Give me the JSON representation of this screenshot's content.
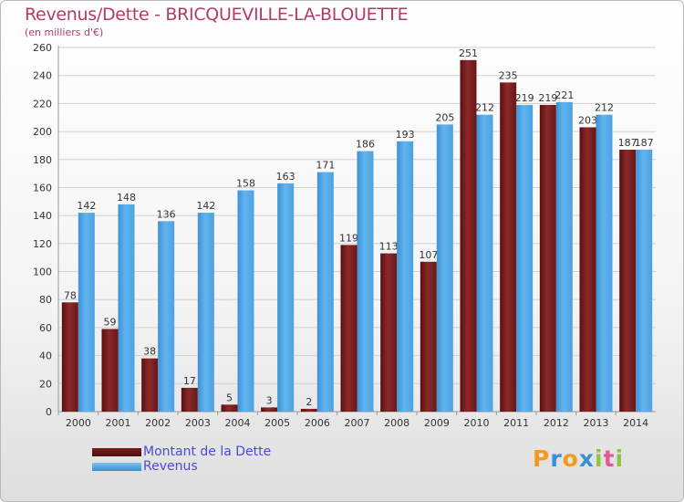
{
  "header": {
    "title": "Revenus/Dette - BRICQUEVILLE-LA-BLOUETTE",
    "subtitle": "(en milliers d'€)"
  },
  "chart_data": {
    "type": "bar",
    "categories": [
      "2000",
      "2001",
      "2002",
      "2003",
      "2004",
      "2005",
      "2006",
      "2007",
      "2008",
      "2009",
      "2010",
      "2011",
      "2012",
      "2013",
      "2014"
    ],
    "series": [
      {
        "name": "Montant de la Dette",
        "values": [
          78,
          59,
          38,
          17,
          5,
          3,
          2,
          119,
          113,
          107,
          251,
          235,
          219,
          203,
          187
        ],
        "color": "#7a1c1c"
      },
      {
        "name": "Revenus",
        "values": [
          142,
          148,
          136,
          142,
          158,
          163,
          171,
          186,
          193,
          205,
          212,
          219,
          221,
          212,
          187
        ],
        "color": "#4da6e6"
      }
    ],
    "ylim": [
      0,
      260
    ],
    "yticks": [
      0,
      20,
      40,
      60,
      80,
      100,
      120,
      140,
      160,
      180,
      200,
      220,
      240,
      260
    ],
    "grid": true,
    "legend": "bottom-left"
  },
  "legend": {
    "items": [
      {
        "label": "Montant de la Dette",
        "color": "#7a1c1c"
      },
      {
        "label": "Revenus",
        "color": "#4da6e6"
      }
    ]
  },
  "logo": {
    "letters": [
      "P",
      "r",
      "o",
      "x",
      "i",
      "t",
      "i"
    ],
    "colors": [
      "#f29a1e",
      "#3a8fd6",
      "#f29a1e",
      "#3a8fd6",
      "#8cc63f",
      "#e05a9a",
      "#8cc63f"
    ]
  }
}
